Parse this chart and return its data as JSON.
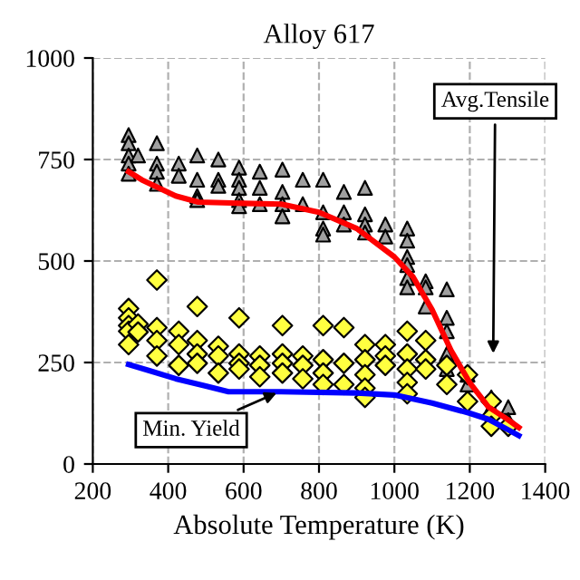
{
  "chart_data": {
    "type": "scatter",
    "title": "Alloy 617",
    "xlabel": "Absolute Temperature (K)",
    "xlim": [
      200,
      1400
    ],
    "xticks": [
      200,
      400,
      600,
      800,
      1000,
      1200,
      1400
    ],
    "ylim": [
      0,
      1000
    ],
    "yticks": [
      0,
      250,
      500,
      750,
      1000
    ],
    "grid": true,
    "annotations": [
      "Avg.Tensile",
      {
        "text": "Min. Yield",
        "x": 700,
        "y": 180
      }
    ],
    "series": [
      {
        "marker": "triangle",
        "color": "#a0a0a0",
        "x": [
          295,
          295,
          295,
          295,
          295,
          320,
          370,
          370,
          370,
          370,
          428,
          428,
          477,
          477,
          477,
          477,
          533,
          533,
          533,
          588,
          588,
          588,
          588,
          588,
          643,
          643,
          643,
          703,
          703,
          703,
          703,
          757,
          757,
          811,
          811,
          811,
          811,
          866,
          866,
          866,
          922,
          922,
          922,
          922,
          976,
          976,
          1034,
          1034,
          1034,
          1034,
          1034,
          1034,
          1083,
          1083,
          1083,
          1139,
          1139,
          1139,
          1139,
          1139,
          1194,
          1194,
          1257,
          1257,
          1302,
          1302
        ],
        "values": [
          810,
          790,
          760,
          740,
          715,
          760,
          790,
          740,
          720,
          690,
          740,
          710,
          760,
          700,
          660,
          650,
          750,
          700,
          685,
          730,
          700,
          680,
          650,
          635,
          720,
          680,
          640,
          725,
          670,
          640,
          610,
          700,
          640,
          700,
          620,
          580,
          565,
          670,
          620,
          590,
          680,
          615,
          590,
          570,
          590,
          560,
          580,
          550,
          510,
          490,
          458,
          435,
          450,
          435,
          388,
          430,
          360,
          327,
          271,
          234,
          220,
          196,
          164,
          140,
          140,
          108
        ]
      },
      {
        "marker": "diamond",
        "color": "#ffff40",
        "x": [
          295,
          295,
          295,
          295,
          295,
          320,
          320,
          370,
          370,
          370,
          370,
          428,
          428,
          428,
          477,
          477,
          477,
          477,
          533,
          533,
          533,
          588,
          588,
          588,
          588,
          643,
          643,
          643,
          703,
          703,
          703,
          703,
          757,
          757,
          757,
          811,
          811,
          811,
          811,
          866,
          866,
          866,
          922,
          922,
          922,
          922,
          922,
          976,
          976,
          976,
          1034,
          1034,
          1034,
          1034,
          1034,
          1083,
          1083,
          1083,
          1139,
          1139,
          1194,
          1194,
          1257,
          1257,
          1257,
          1302
        ],
        "values": [
          383,
          360,
          341,
          327,
          294,
          345,
          325,
          453,
          336,
          304,
          266,
          327,
          294,
          243,
          388,
          304,
          271,
          248,
          290,
          266,
          224,
          360,
          271,
          248,
          234,
          266,
          243,
          215,
          341,
          271,
          248,
          224,
          266,
          243,
          210,
          341,
          257,
          224,
          196,
          336,
          248,
          196,
          294,
          257,
          220,
          187,
          164,
          294,
          266,
          243,
          327,
          271,
          234,
          201,
          173,
          304,
          257,
          234,
          243,
          196,
          220,
          154,
          154,
          117,
          93,
          93
        ]
      },
      {
        "type": "line",
        "color": "#ff0000",
        "x": [
          295,
          330,
          420,
          480,
          600,
          700,
          800,
          900,
          1000,
          1050,
          1100,
          1150,
          1200,
          1250,
          1300,
          1330
        ],
        "values": [
          720,
          700,
          660,
          645,
          642,
          640,
          620,
          580,
          510,
          460,
          380,
          280,
          200,
          140,
          110,
          90
        ]
      },
      {
        "type": "line",
        "color": "#0000ff",
        "x": [
          295,
          350,
          420,
          500,
          560,
          700,
          900,
          1000,
          1100,
          1200,
          1250,
          1300,
          1330
        ],
        "values": [
          245,
          230,
          210,
          192,
          178,
          178,
          175,
          170,
          150,
          125,
          110,
          85,
          70
        ]
      }
    ]
  }
}
